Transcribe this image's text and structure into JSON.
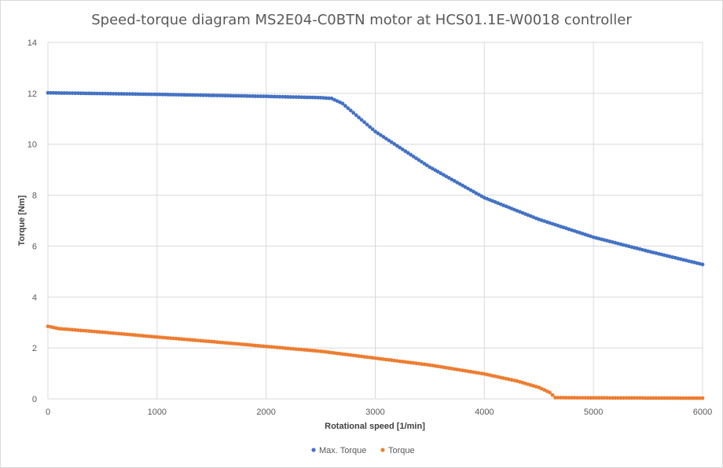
{
  "chart_data": {
    "type": "scatter",
    "title": "Speed-torque diagram MS2E04-C0BTN motor at HCS01.1E-W0018 controller",
    "xlabel": "Rotational speed [1/min]",
    "ylabel": "Torque [Nm]",
    "xlim": [
      0,
      6000
    ],
    "ylim": [
      0,
      14
    ],
    "x_ticks": [
      "0",
      "1000",
      "2000",
      "3000",
      "4000",
      "5000",
      "6000"
    ],
    "y_ticks": [
      "0",
      "2",
      "4",
      "6",
      "8",
      "10",
      "12",
      "14"
    ],
    "grid": true,
    "legend_position": "bottom",
    "series": [
      {
        "name": "Max. Torque",
        "color": "#4472c4",
        "points": [
          [
            0,
            12.02
          ],
          [
            500,
            11.99
          ],
          [
            1000,
            11.96
          ],
          [
            1500,
            11.92
          ],
          [
            2000,
            11.88
          ],
          [
            2500,
            11.83
          ],
          [
            2600,
            11.8
          ],
          [
            2700,
            11.6
          ],
          [
            3000,
            10.5
          ],
          [
            3500,
            9.1
          ],
          [
            4000,
            7.9
          ],
          [
            4500,
            7.05
          ],
          [
            5000,
            6.35
          ],
          [
            5500,
            5.8
          ],
          [
            6000,
            5.28
          ]
        ]
      },
      {
        "name": "Torque",
        "color": "#ed7d31",
        "points": [
          [
            0,
            2.85
          ],
          [
            100,
            2.76
          ],
          [
            500,
            2.62
          ],
          [
            1000,
            2.43
          ],
          [
            1500,
            2.25
          ],
          [
            2000,
            2.06
          ],
          [
            2500,
            1.87
          ],
          [
            3000,
            1.6
          ],
          [
            3500,
            1.33
          ],
          [
            4000,
            0.98
          ],
          [
            4300,
            0.7
          ],
          [
            4500,
            0.45
          ],
          [
            4600,
            0.25
          ],
          [
            4650,
            0.05
          ],
          [
            5000,
            0.04
          ],
          [
            6000,
            0.03
          ]
        ]
      }
    ]
  }
}
